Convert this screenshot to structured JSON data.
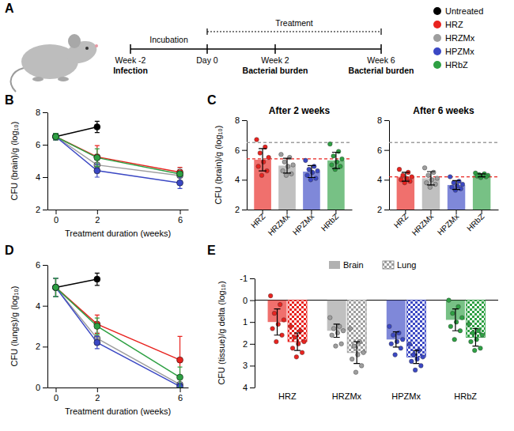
{
  "timeline": {
    "panel": "A",
    "phases": [
      "Incubation",
      "Treatment"
    ],
    "events": [
      {
        "label": "Week -2",
        "note": "Infection"
      },
      {
        "label": "Day 0"
      },
      {
        "label": "Week 2",
        "note": "Bacterial burden"
      },
      {
        "label": "Week 6",
        "note": "Bacterial burden"
      }
    ]
  },
  "chart_data": [
    {
      "panel": "B",
      "type": "line",
      "x_label": "Treatment duration (weeks)",
      "y_label": "CFU (brain)/g (log₁₀)",
      "x": [
        0,
        2,
        6
      ],
      "xlim": [
        -0.4,
        6.4
      ],
      "xticks": [
        0,
        2,
        6
      ],
      "ylim": [
        2,
        8
      ],
      "yticks": [
        2,
        4,
        6,
        8
      ],
      "marker": "circle",
      "legend": "top-right",
      "series": [
        {
          "name": "Untreated",
          "color": "#000000",
          "values": [
            6.5,
            7.1,
            null
          ],
          "errors": [
            0.2,
            0.35,
            null
          ]
        },
        {
          "name": "HRZ",
          "color": "#e8231f",
          "values": [
            6.5,
            5.25,
            4.3
          ],
          "errors": [
            0.2,
            0.7,
            0.3
          ]
        },
        {
          "name": "HRZMx",
          "color": "#9e9e9e",
          "values": [
            6.5,
            4.75,
            4.1
          ],
          "errors": [
            0.2,
            0.5,
            0.45
          ]
        },
        {
          "name": "HPZMx",
          "color": "#3b48c4",
          "values": [
            6.5,
            4.4,
            3.65
          ],
          "errors": [
            0.2,
            0.4,
            0.35
          ]
        },
        {
          "name": "HRbZ",
          "color": "#2ea043",
          "values": [
            6.5,
            5.2,
            4.2
          ],
          "errors": [
            0.2,
            0.55,
            0.15
          ]
        }
      ]
    },
    {
      "panel": "C",
      "type": "bar",
      "title": "After 2 weeks",
      "y_label": "CFU (brain)/g (log₁₀)",
      "categories": [
        "HRZ",
        "HRZMx",
        "HPZMx",
        "HRbZ"
      ],
      "values": [
        5.35,
        4.95,
        4.55,
        5.3
      ],
      "errors": [
        0.75,
        0.5,
        0.4,
        0.55
      ],
      "points": [
        [
          6.7,
          6.2,
          5.8,
          5.5,
          5.2,
          4.9,
          4.6,
          4.3
        ],
        [
          5.7,
          5.5,
          5.2,
          5.0,
          4.9,
          4.6,
          4.4,
          4.3
        ],
        [
          5.3,
          4.9,
          4.7,
          4.6,
          4.5,
          4.3,
          4.1,
          4.0
        ],
        [
          6.4,
          5.9,
          5.6,
          5.4,
          5.2,
          5.0,
          4.9,
          4.7
        ]
      ],
      "colors": [
        "#e8231f",
        "#9e9e9e",
        "#3b48c4",
        "#2ea043"
      ],
      "reference_lines": [
        {
          "value": 6.5,
          "color": "#9e9e9e"
        },
        {
          "value": 5.4,
          "color": "#e8231f"
        }
      ],
      "ylim": [
        2,
        8
      ],
      "yticks": [
        2,
        4,
        6,
        8
      ]
    },
    {
      "type": "bar",
      "title": "After 6 weeks",
      "categories": [
        "HRZ",
        "HRZMx",
        "HPZMx",
        "HRbZ"
      ],
      "values": [
        4.2,
        4.1,
        3.65,
        4.3
      ],
      "errors": [
        0.3,
        0.45,
        0.3,
        0.1
      ],
      "points": [
        [
          4.7,
          4.5,
          4.3,
          4.2,
          4.1,
          4.0,
          3.9,
          3.8
        ],
        [
          4.8,
          4.5,
          4.3,
          4.1,
          4.0,
          3.8,
          3.7,
          3.5
        ],
        [
          4.2,
          3.9,
          3.8,
          3.7,
          3.6,
          3.5,
          3.4,
          3.3
        ],
        [
          4.45,
          4.4,
          4.35,
          4.3,
          4.3,
          4.25,
          4.2,
          4.15
        ]
      ],
      "colors": [
        "#e8231f",
        "#9e9e9e",
        "#3b48c4",
        "#2ea043"
      ],
      "reference_lines": [
        {
          "value": 6.5,
          "color": "#9e9e9e"
        },
        {
          "value": 4.2,
          "color": "#e8231f"
        }
      ],
      "ylim": [
        2,
        8
      ],
      "yticks": [
        2,
        4,
        6,
        8
      ]
    },
    {
      "panel": "D",
      "type": "line",
      "x_label": "Treatment duration (weeks)",
      "y_label": "CFU (lungs)/g (log₁₀)",
      "x": [
        0,
        2,
        6
      ],
      "xlim": [
        -0.4,
        6.4
      ],
      "xticks": [
        0,
        2,
        6
      ],
      "ylim": [
        0,
        6
      ],
      "yticks": [
        0,
        2,
        4,
        6
      ],
      "marker": "circle",
      "series": [
        {
          "color": "#000000",
          "values": [
            4.9,
            5.3,
            null
          ],
          "errors": [
            0.45,
            0.3,
            null
          ]
        },
        {
          "color": "#e8231f",
          "values": [
            4.9,
            3.1,
            1.35
          ],
          "errors": [
            0.45,
            0.45,
            1.15
          ]
        },
        {
          "color": "#9e9e9e",
          "values": [
            4.9,
            2.4,
            0.15
          ],
          "errors": [
            0.45,
            0.3,
            0.4
          ]
        },
        {
          "color": "#3b48c4",
          "values": [
            4.9,
            2.2,
            0.05
          ],
          "errors": [
            0.45,
            0.3,
            0.15
          ]
        },
        {
          "color": "#2ea043",
          "values": [
            4.9,
            3.0,
            0.5
          ],
          "errors": [
            0.45,
            0.4,
            0.5
          ]
        }
      ]
    },
    {
      "panel": "E",
      "type": "bar",
      "y_label": "CFU (tissue)/g delta (log₁₀)",
      "categories": [
        "HRZ",
        "HRZMx",
        "HPZMx",
        "HRbZ"
      ],
      "colors": [
        "#e8231f",
        "#9e9e9e",
        "#3b48c4",
        "#2ea043"
      ],
      "legend": "top",
      "ylim": [
        4,
        -1
      ],
      "yticks": [
        -1,
        0,
        1,
        2,
        3,
        4
      ],
      "series": [
        {
          "name": "Brain",
          "values": [
            1.0,
            1.4,
            1.8,
            0.9
          ],
          "errors": [
            0.6,
            0.3,
            0.35,
            0.5
          ],
          "points": [
            [
              -0.2,
              0.2,
              0.6,
              0.9,
              1.1,
              1.3,
              1.6,
              1.9
            ],
            [
              0.8,
              1.2,
              1.3,
              1.4,
              1.5,
              1.6,
              2.0,
              2.1
            ],
            [
              1.2,
              1.5,
              1.6,
              1.8,
              1.9,
              2.0,
              2.2,
              2.5
            ],
            [
              0.0,
              0.3,
              0.6,
              0.8,
              1.0,
              1.2,
              1.4,
              1.8
            ]
          ]
        },
        {
          "name": "Lung",
          "values": [
            1.9,
            2.4,
            2.6,
            1.7
          ],
          "errors": [
            0.4,
            0.5,
            0.3,
            0.4
          ],
          "points": [
            [
              1.2,
              1.4,
              1.7,
              1.9,
              2.0,
              2.2,
              2.4,
              2.6
            ],
            [
              1.3,
              1.9,
              2.1,
              2.4,
              2.5,
              2.7,
              3.0,
              3.3
            ],
            [
              2.0,
              2.3,
              2.5,
              2.6,
              2.7,
              2.8,
              3.0,
              3.2
            ],
            [
              1.1,
              1.4,
              1.5,
              1.6,
              1.8,
              1.9,
              2.2,
              2.3
            ]
          ]
        }
      ]
    }
  ]
}
